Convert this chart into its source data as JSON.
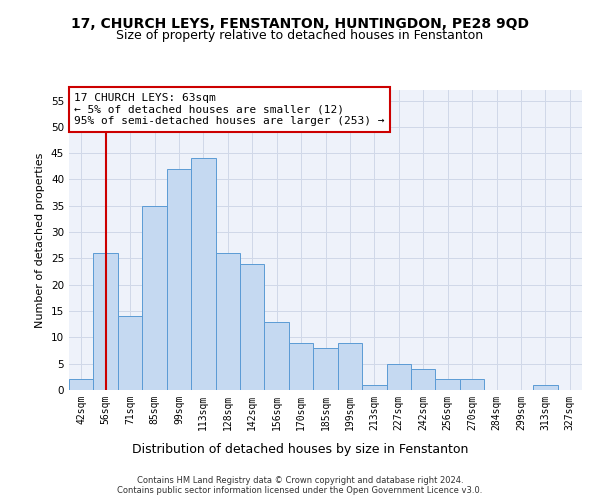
{
  "title1": "17, CHURCH LEYS, FENSTANTON, HUNTINGDON, PE28 9QD",
  "title2": "Size of property relative to detached houses in Fenstanton",
  "xlabel": "Distribution of detached houses by size in Fenstanton",
  "ylabel": "Number of detached properties",
  "bar_labels": [
    "42sqm",
    "56sqm",
    "71sqm",
    "85sqm",
    "99sqm",
    "113sqm",
    "128sqm",
    "142sqm",
    "156sqm",
    "170sqm",
    "185sqm",
    "199sqm",
    "213sqm",
    "227sqm",
    "242sqm",
    "256sqm",
    "270sqm",
    "284sqm",
    "299sqm",
    "313sqm",
    "327sqm"
  ],
  "bar_values": [
    2,
    26,
    14,
    35,
    42,
    44,
    26,
    24,
    13,
    9,
    8,
    9,
    1,
    5,
    4,
    2,
    2,
    0,
    0,
    1,
    0
  ],
  "bar_color": "#c5d9f1",
  "bar_edge_color": "#5b9bd5",
  "vline_x": 1,
  "vline_color": "#cc0000",
  "annotation_text": "17 CHURCH LEYS: 63sqm\n← 5% of detached houses are smaller (12)\n95% of semi-detached houses are larger (253) →",
  "annotation_box_edge": "#cc0000",
  "grid_color": "#d0d8e8",
  "background_color": "#eef2fa",
  "yticks": [
    0,
    5,
    10,
    15,
    20,
    25,
    30,
    35,
    40,
    45,
    50,
    55
  ],
  "ylim": [
    0,
    57
  ],
  "footer1": "Contains HM Land Registry data © Crown copyright and database right 2024.",
  "footer2": "Contains public sector information licensed under the Open Government Licence v3.0.",
  "title1_fontsize": 10,
  "title2_fontsize": 9,
  "tick_fontsize": 7,
  "ylabel_fontsize": 8,
  "xlabel_fontsize": 9,
  "footer_fontsize": 6
}
